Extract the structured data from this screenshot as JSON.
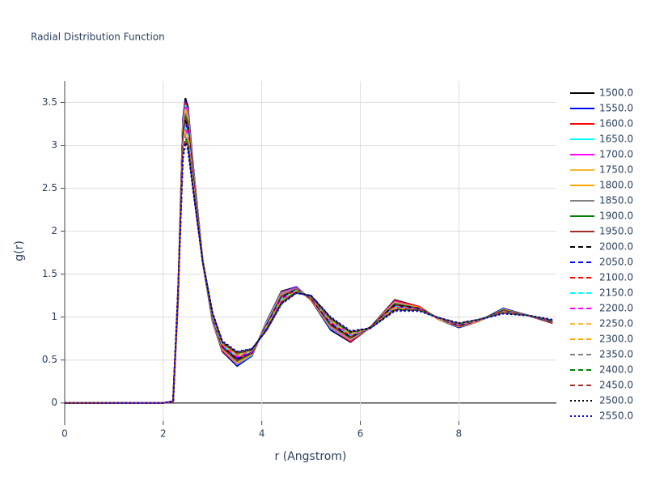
{
  "chart_data": {
    "type": "line",
    "title": "Radial Distribution Function",
    "x_label": "r (Angstrom)",
    "y_label": "g(r)",
    "x": [
      0,
      1,
      2,
      2.2,
      2.3,
      2.4,
      2.45,
      2.5,
      2.6,
      2.8,
      3.0,
      3.2,
      3.5,
      3.8,
      4.1,
      4.4,
      4.7,
      5.0,
      5.4,
      5.8,
      6.2,
      6.7,
      7.2,
      7.6,
      8.0,
      8.4,
      8.9,
      9.4,
      9.9
    ],
    "xlim": [
      0,
      9.98
    ],
    "xticks": [
      0,
      2,
      4,
      6,
      8
    ],
    "ylim": [
      -0.21,
      3.75
    ],
    "yticks": [
      0,
      0.5,
      1,
      1.5,
      2,
      2.5,
      3,
      3.5
    ],
    "grid": true,
    "legend": "right",
    "series": [
      {
        "name": "1500.0",
        "color": "#000000",
        "dash": "solid",
        "values": [
          0,
          0,
          0,
          0.02,
          1.2,
          3.3,
          3.55,
          3.45,
          2.8,
          1.65,
          0.95,
          0.6,
          0.43,
          0.55,
          0.95,
          1.3,
          1.35,
          1.2,
          0.85,
          0.71,
          0.88,
          1.2,
          1.12,
          0.97,
          0.88,
          0.95,
          1.1,
          1.02,
          0.93
        ]
      },
      {
        "name": "1550.0",
        "color": "#0000ff",
        "dash": "solid",
        "values": [
          0,
          0,
          0,
          0.02,
          1.2,
          3.28,
          3.52,
          3.43,
          2.79,
          1.65,
          0.96,
          0.61,
          0.44,
          0.55,
          0.95,
          1.29,
          1.35,
          1.2,
          0.86,
          0.72,
          0.88,
          1.19,
          1.12,
          0.97,
          0.88,
          0.95,
          1.1,
          1.02,
          0.93
        ]
      },
      {
        "name": "1600.0",
        "color": "#ff0000",
        "dash": "solid",
        "values": [
          0,
          0,
          0,
          0.02,
          1.21,
          3.26,
          3.5,
          3.4,
          2.77,
          1.65,
          0.96,
          0.61,
          0.45,
          0.56,
          0.94,
          1.29,
          1.34,
          1.2,
          0.87,
          0.72,
          0.88,
          1.19,
          1.12,
          0.97,
          0.89,
          0.95,
          1.09,
          1.02,
          0.93
        ]
      },
      {
        "name": "1650.0",
        "color": "#00ffff",
        "dash": "solid",
        "values": [
          0,
          0,
          0,
          0.02,
          1.21,
          3.24,
          3.47,
          3.38,
          2.76,
          1.65,
          0.96,
          0.62,
          0.45,
          0.56,
          0.94,
          1.28,
          1.34,
          1.21,
          0.87,
          0.73,
          0.88,
          1.18,
          1.11,
          0.97,
          0.89,
          0.95,
          1.09,
          1.02,
          0.94
        ]
      },
      {
        "name": "1700.0",
        "color": "#ff00ff",
        "dash": "solid",
        "values": [
          0,
          0,
          0,
          0.02,
          1.22,
          3.21,
          3.45,
          3.36,
          2.74,
          1.65,
          0.97,
          0.62,
          0.46,
          0.57,
          0.93,
          1.27,
          1.34,
          1.21,
          0.88,
          0.73,
          0.88,
          1.18,
          1.11,
          0.97,
          0.89,
          0.95,
          1.09,
          1.02,
          0.94
        ]
      },
      {
        "name": "1750.0",
        "color": "#f5b82e",
        "dash": "solid",
        "values": [
          0,
          0,
          0,
          0.02,
          1.22,
          3.19,
          3.42,
          3.33,
          2.73,
          1.65,
          0.97,
          0.63,
          0.47,
          0.57,
          0.93,
          1.26,
          1.33,
          1.21,
          0.89,
          0.74,
          0.88,
          1.17,
          1.11,
          0.97,
          0.89,
          0.95,
          1.09,
          1.02,
          0.94
        ]
      },
      {
        "name": "1800.0",
        "color": "#ffa500",
        "dash": "solid",
        "values": [
          0,
          0,
          0,
          0.02,
          1.23,
          3.17,
          3.39,
          3.31,
          2.71,
          1.65,
          0.98,
          0.63,
          0.48,
          0.57,
          0.92,
          1.26,
          1.33,
          1.21,
          0.89,
          0.75,
          0.88,
          1.16,
          1.11,
          0.98,
          0.89,
          0.96,
          1.08,
          1.02,
          0.94
        ]
      },
      {
        "name": "1850.0",
        "color": "#808080",
        "dash": "solid",
        "values": [
          0,
          0,
          0,
          0.02,
          1.23,
          3.15,
          3.37,
          3.29,
          2.7,
          1.65,
          0.98,
          0.64,
          0.49,
          0.58,
          0.92,
          1.25,
          1.33,
          1.22,
          0.9,
          0.75,
          0.88,
          1.16,
          1.1,
          0.98,
          0.9,
          0.96,
          1.08,
          1.02,
          0.94
        ]
      },
      {
        "name": "1900.0",
        "color": "#008000",
        "dash": "solid",
        "values": [
          0,
          0,
          0,
          0.02,
          1.24,
          3.13,
          3.34,
          3.26,
          2.69,
          1.65,
          0.99,
          0.65,
          0.49,
          0.58,
          0.91,
          1.24,
          1.32,
          1.22,
          0.91,
          0.76,
          0.88,
          1.15,
          1.1,
          0.98,
          0.9,
          0.96,
          1.08,
          1.02,
          0.94
        ]
      },
      {
        "name": "1950.0",
        "color": "#a52a2a",
        "dash": "solid",
        "values": [
          0,
          0,
          0,
          0.02,
          1.24,
          3.11,
          3.31,
          3.24,
          2.67,
          1.65,
          0.99,
          0.65,
          0.5,
          0.58,
          0.91,
          1.24,
          1.32,
          1.22,
          0.91,
          0.77,
          0.88,
          1.14,
          1.1,
          0.98,
          0.9,
          0.96,
          1.07,
          1.02,
          0.95
        ]
      },
      {
        "name": "2000.0",
        "color": "#000000",
        "dash": "dash",
        "values": [
          0,
          0,
          0,
          0.02,
          1.25,
          3.08,
          3.29,
          3.21,
          2.66,
          1.65,
          1.0,
          0.66,
          0.51,
          0.59,
          0.9,
          1.23,
          1.32,
          1.22,
          0.92,
          0.77,
          0.88,
          1.14,
          1.1,
          0.98,
          0.9,
          0.96,
          1.07,
          1.02,
          0.95
        ]
      },
      {
        "name": "2050.0",
        "color": "#0000ff",
        "dash": "dash",
        "values": [
          0,
          0,
          0,
          0.02,
          1.25,
          3.07,
          3.26,
          3.19,
          2.64,
          1.65,
          1.0,
          0.66,
          0.52,
          0.59,
          0.9,
          1.22,
          1.31,
          1.23,
          0.93,
          0.78,
          0.87,
          1.13,
          1.09,
          0.98,
          0.91,
          0.96,
          1.07,
          1.02,
          0.95
        ]
      },
      {
        "name": "2100.0",
        "color": "#ff0000",
        "dash": "dash",
        "values": [
          0,
          0,
          0,
          0.02,
          1.26,
          3.04,
          3.24,
          3.17,
          2.63,
          1.65,
          1.01,
          0.67,
          0.53,
          0.6,
          0.89,
          1.21,
          1.31,
          1.23,
          0.94,
          0.78,
          0.87,
          1.13,
          1.09,
          0.98,
          0.91,
          0.96,
          1.07,
          1.02,
          0.95
        ]
      },
      {
        "name": "2150.0",
        "color": "#00ffff",
        "dash": "dash",
        "values": [
          0,
          0,
          0,
          0.02,
          1.26,
          3.02,
          3.21,
          3.14,
          2.61,
          1.65,
          1.01,
          0.67,
          0.54,
          0.6,
          0.89,
          1.21,
          1.31,
          1.23,
          0.94,
          0.79,
          0.87,
          1.12,
          1.09,
          0.98,
          0.91,
          0.96,
          1.06,
          1.02,
          0.95
        ]
      },
      {
        "name": "2200.0",
        "color": "#ff00ff",
        "dash": "dash",
        "values": [
          0,
          0,
          0,
          0.02,
          1.27,
          3.0,
          3.18,
          3.12,
          2.6,
          1.65,
          1.02,
          0.68,
          0.54,
          0.6,
          0.88,
          1.2,
          1.3,
          1.23,
          0.95,
          0.8,
          0.87,
          1.11,
          1.09,
          0.98,
          0.91,
          0.96,
          1.06,
          1.02,
          0.95
        ]
      },
      {
        "name": "2250.0",
        "color": "#f5b82e",
        "dash": "dash",
        "values": [
          0,
          0,
          0,
          0.02,
          1.27,
          2.98,
          3.16,
          3.1,
          2.59,
          1.65,
          1.02,
          0.69,
          0.55,
          0.61,
          0.88,
          1.19,
          1.3,
          1.24,
          0.96,
          0.8,
          0.87,
          1.11,
          1.08,
          0.98,
          0.92,
          0.96,
          1.06,
          1.02,
          0.96
        ]
      },
      {
        "name": "2300.0",
        "color": "#ffa500",
        "dash": "dash",
        "values": [
          0,
          0,
          0,
          0.02,
          1.28,
          2.96,
          3.13,
          3.07,
          2.57,
          1.65,
          1.03,
          0.69,
          0.56,
          0.61,
          0.87,
          1.19,
          1.3,
          1.24,
          0.96,
          0.81,
          0.87,
          1.1,
          1.08,
          0.99,
          0.92,
          0.97,
          1.05,
          1.02,
          0.96
        ]
      },
      {
        "name": "2350.0",
        "color": "#808080",
        "dash": "dash",
        "values": [
          0,
          0,
          0,
          0.02,
          1.28,
          2.94,
          3.1,
          3.05,
          2.56,
          1.65,
          1.03,
          0.7,
          0.57,
          0.61,
          0.87,
          1.18,
          1.29,
          1.24,
          0.97,
          0.82,
          0.87,
          1.09,
          1.08,
          0.99,
          0.92,
          0.97,
          1.05,
          1.02,
          0.96
        ]
      },
      {
        "name": "2400.0",
        "color": "#008000",
        "dash": "dash",
        "values": [
          0,
          0,
          0,
          0.02,
          1.29,
          2.91,
          3.08,
          3.02,
          2.54,
          1.65,
          1.04,
          0.7,
          0.58,
          0.62,
          0.86,
          1.17,
          1.29,
          1.24,
          0.98,
          0.82,
          0.87,
          1.09,
          1.08,
          0.99,
          0.92,
          0.97,
          1.05,
          1.02,
          0.96
        ]
      },
      {
        "name": "2450.0",
        "color": "#a52a2a",
        "dash": "dash",
        "values": [
          0,
          0,
          0,
          0.02,
          1.29,
          2.9,
          3.06,
          3.0,
          2.53,
          1.65,
          1.04,
          0.71,
          0.58,
          0.62,
          0.86,
          1.17,
          1.29,
          1.25,
          0.99,
          0.83,
          0.87,
          1.08,
          1.08,
          0.99,
          0.93,
          0.97,
          1.05,
          1.02,
          0.96
        ]
      },
      {
        "name": "2500.0",
        "color": "#000000",
        "dash": "dot",
        "values": [
          0,
          0,
          0,
          0.02,
          1.3,
          2.87,
          3.03,
          2.98,
          2.52,
          1.65,
          1.05,
          0.71,
          0.59,
          0.63,
          0.85,
          1.16,
          1.28,
          1.25,
          0.99,
          0.83,
          0.87,
          1.08,
          1.07,
          0.99,
          0.93,
          0.97,
          1.04,
          1.02,
          0.97
        ]
      },
      {
        "name": "2550.0",
        "color": "#0000ff",
        "dash": "dot",
        "values": [
          0,
          0,
          0,
          0.02,
          1.3,
          2.85,
          3.0,
          2.95,
          2.5,
          1.65,
          1.05,
          0.72,
          0.6,
          0.63,
          0.85,
          1.15,
          1.28,
          1.25,
          1.0,
          0.84,
          0.87,
          1.07,
          1.07,
          0.99,
          0.93,
          0.97,
          1.04,
          1.02,
          0.97
        ]
      }
    ]
  }
}
